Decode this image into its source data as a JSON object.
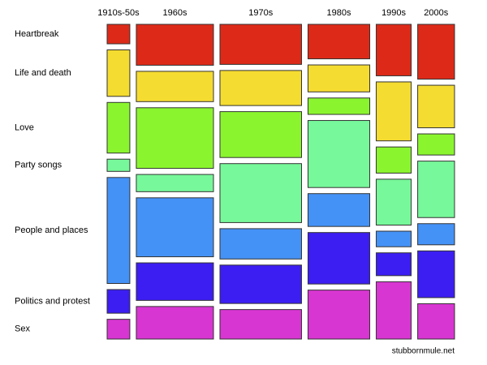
{
  "chart_data": {
    "type": "mosaic",
    "categories": [
      "1910s-50s",
      "1960s",
      "1970s",
      "1980s",
      "1990s",
      "2000s"
    ],
    "column_shares": [
      7.2,
      24.5,
      25.9,
      19.6,
      11.1,
      11.7
    ],
    "series": [
      {
        "name": "Heartbreak",
        "color": "#dd2a18",
        "values": [
          7.0,
          14.7,
          14.4,
          12.4,
          18.5,
          19.7
        ]
      },
      {
        "name": "Life and death",
        "color": "#f5dc30",
        "values": [
          16.7,
          10.9,
          12.6,
          9.7,
          21.2,
          15.3
        ]
      },
      {
        "name": "Love",
        "color": "#8af52e",
        "values": [
          18.2,
          21.8,
          16.5,
          5.9,
          9.4,
          7.6
        ]
      },
      {
        "name": "Party songs",
        "color": "#77f89a",
        "values": [
          4.4,
          6.2,
          21.2,
          24.1,
          16.5,
          20.3
        ]
      },
      {
        "name": "People and places",
        "color": "#4592f7",
        "values": [
          38.1,
          21.2,
          10.9,
          11.8,
          5.6,
          7.6
        ]
      },
      {
        "name": "Politics and protest",
        "color": "#3c1ef2",
        "values": [
          8.5,
          13.5,
          13.8,
          18.5,
          8.2,
          16.8
        ]
      },
      {
        "name": "Sex",
        "color": "#d836d2",
        "values": [
          7.1,
          11.7,
          10.6,
          17.6,
          20.6,
          12.7
        ]
      }
    ],
    "source": "stubbornmule.net"
  }
}
